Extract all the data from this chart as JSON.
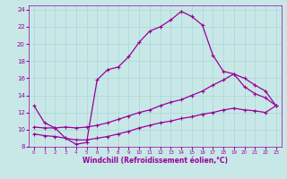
{
  "xlabel": "Windchill (Refroidissement éolien,°C)",
  "ylabel": "",
  "xlim": [
    -0.5,
    23.5
  ],
  "ylim": [
    8,
    24.5
  ],
  "xticks": [
    0,
    1,
    2,
    3,
    4,
    5,
    6,
    7,
    8,
    9,
    10,
    11,
    12,
    13,
    14,
    15,
    16,
    17,
    18,
    19,
    20,
    21,
    22,
    23
  ],
  "yticks": [
    8,
    10,
    12,
    14,
    16,
    18,
    20,
    22,
    24
  ],
  "bg_color": "#c8e8e8",
  "grid_color": "#aad4d4",
  "line_color": "#990099",
  "line1_x": [
    0,
    1,
    2,
    3,
    4,
    5,
    6,
    7,
    8,
    9,
    10,
    11,
    12,
    13,
    14,
    15,
    16,
    17,
    18,
    19,
    20,
    21,
    22,
    23
  ],
  "line1_y": [
    12.8,
    10.8,
    10.2,
    9.0,
    8.3,
    8.5,
    15.8,
    17.0,
    17.3,
    18.5,
    20.2,
    21.5,
    22.0,
    22.8,
    23.8,
    23.2,
    22.2,
    18.7,
    16.8,
    16.5,
    15.0,
    14.2,
    13.7,
    12.8
  ],
  "line2_x": [
    0,
    1,
    2,
    3,
    4,
    5,
    6,
    7,
    8,
    9,
    10,
    11,
    12,
    13,
    14,
    15,
    16,
    17,
    18,
    19,
    20,
    21,
    22,
    23
  ],
  "line2_y": [
    10.3,
    10.2,
    10.2,
    10.3,
    10.2,
    10.3,
    10.5,
    10.8,
    11.2,
    11.6,
    12.0,
    12.3,
    12.8,
    13.2,
    13.5,
    14.0,
    14.5,
    15.2,
    15.8,
    16.5,
    16.0,
    15.2,
    14.5,
    12.8
  ],
  "line3_x": [
    0,
    1,
    2,
    3,
    4,
    5,
    6,
    7,
    8,
    9,
    10,
    11,
    12,
    13,
    14,
    15,
    16,
    17,
    18,
    19,
    20,
    21,
    22,
    23
  ],
  "line3_y": [
    9.5,
    9.3,
    9.2,
    9.0,
    8.8,
    8.8,
    9.0,
    9.2,
    9.5,
    9.8,
    10.2,
    10.5,
    10.8,
    11.0,
    11.3,
    11.5,
    11.8,
    12.0,
    12.3,
    12.5,
    12.3,
    12.2,
    12.0,
    12.8
  ],
  "marker": "+",
  "markersize": 3,
  "linewidth": 0.9
}
